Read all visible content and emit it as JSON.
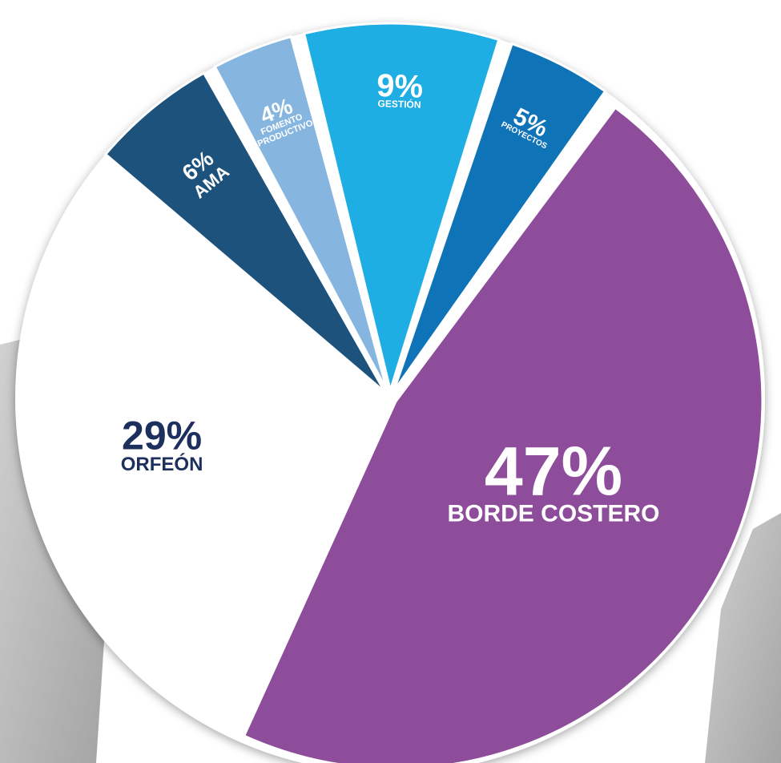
{
  "chart_data": {
    "type": "pie",
    "title": "",
    "slices": [
      {
        "value": 47,
        "pct_label": "47%",
        "label_lines": [
          "BORDE COSTERO"
        ],
        "color": "#8e4d9b",
        "text_color": "#ffffff"
      },
      {
        "value": 29,
        "pct_label": "29%",
        "label_lines": [
          "ORFEÓN"
        ],
        "color": "#ffffff",
        "text_color": "#1d2f5c"
      },
      {
        "value": 6,
        "pct_label": "6%",
        "label_lines": [
          "AMA"
        ],
        "color": "#1c527b",
        "text_color": "#ffffff"
      },
      {
        "value": 4,
        "pct_label": "4%",
        "label_lines": [
          "FOMENTO",
          "PRODUCTIVO"
        ],
        "color": "#86b6e0",
        "text_color": "#ffffff"
      },
      {
        "value": 9,
        "pct_label": "9%",
        "label_lines": [
          "GESTIÓN"
        ],
        "color": "#1eaee4",
        "text_color": "#ffffff"
      },
      {
        "value": 5,
        "pct_label": "5%",
        "label_lines": [
          "PROYECTOS"
        ],
        "color": "#0f73b8",
        "text_color": "#ffffff"
      }
    ]
  }
}
